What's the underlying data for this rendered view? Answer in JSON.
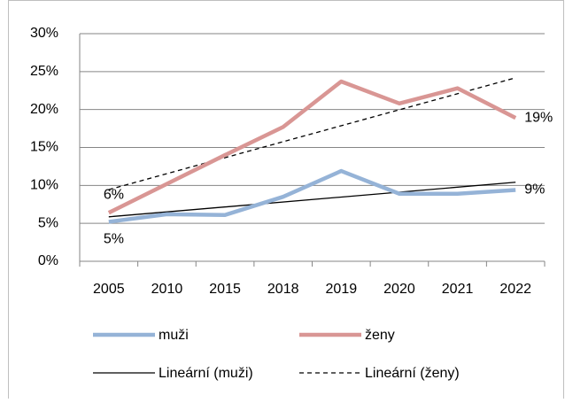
{
  "chart_data": {
    "type": "line",
    "categories": [
      "2005",
      "2010",
      "2015",
      "2018",
      "2019",
      "2020",
      "2021",
      "2022"
    ],
    "series": [
      {
        "name": "muži",
        "color": "#95b3d7",
        "values": [
          5.2,
          6.2,
          6.1,
          8.5,
          11.9,
          8.9,
          8.9,
          9.4
        ],
        "value_labels": [
          "5%",
          null,
          null,
          null,
          null,
          null,
          null,
          "9%"
        ],
        "trendline": {
          "type": "linear",
          "name": "Lineární (muži)",
          "color": "#000000",
          "dashed": false
        }
      },
      {
        "name": "ženy",
        "color": "#d99694",
        "values": [
          6.4,
          10.2,
          14.0,
          17.7,
          23.7,
          20.8,
          22.8,
          18.9
        ],
        "value_labels": [
          "6%",
          null,
          null,
          null,
          null,
          null,
          null,
          "19%"
        ],
        "trendline": {
          "type": "linear",
          "name": "Lineární (ženy)",
          "color": "#000000",
          "dashed": true
        }
      }
    ],
    "ylim": [
      0,
      30
    ],
    "yticks": [
      {
        "value": 0,
        "label": "0%"
      },
      {
        "value": 5,
        "label": "5%"
      },
      {
        "value": 10,
        "label": "10%"
      },
      {
        "value": 15,
        "label": "15%"
      },
      {
        "value": 20,
        "label": "20%"
      },
      {
        "value": 25,
        "label": "25%"
      },
      {
        "value": 30,
        "label": "30%"
      }
    ],
    "grid": true,
    "legend": "bottom"
  }
}
